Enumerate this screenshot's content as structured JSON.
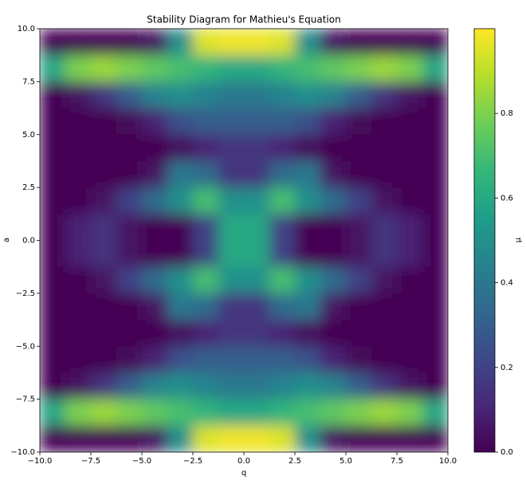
{
  "chart_data": {
    "type": "heatmap",
    "title": "Stability Diagram for Mathieu's Equation",
    "xlabel": "q",
    "ylabel": "a",
    "colorbar_label": "μ",
    "colormap": "viridis",
    "x": [
      -9.375,
      -8.125,
      -6.875,
      -5.625,
      -4.375,
      -3.125,
      -1.875,
      -0.625,
      0.625,
      1.875,
      3.125,
      4.375,
      5.625,
      6.875,
      8.125,
      9.375
    ],
    "y": [
      9.375,
      8.125,
      6.875,
      5.625,
      4.375,
      3.125,
      1.875,
      0.625,
      -0.625,
      -1.875,
      -3.125,
      -4.375,
      -5.625,
      -6.875,
      -8.125,
      -9.375
    ],
    "z": [
      [
        0,
        0,
        0,
        0,
        0.05,
        0.5,
        0.95,
        0.98,
        0.98,
        0.95,
        0.5,
        0.05,
        0,
        0,
        0,
        0
      ],
      [
        0.6,
        0.8,
        0.85,
        0.8,
        0.75,
        0.7,
        0.65,
        0.6,
        0.6,
        0.65,
        0.7,
        0.75,
        0.8,
        0.85,
        0.8,
        0.6
      ],
      [
        0,
        0.05,
        0.15,
        0.3,
        0.45,
        0.5,
        0.45,
        0.4,
        0.4,
        0.45,
        0.5,
        0.45,
        0.3,
        0.15,
        0.05,
        0
      ],
      [
        0,
        0,
        0,
        0.02,
        0.1,
        0.25,
        0.3,
        0.3,
        0.3,
        0.3,
        0.25,
        0.1,
        0.02,
        0,
        0,
        0
      ],
      [
        0,
        0,
        0,
        0,
        0,
        0.03,
        0.1,
        0.15,
        0.15,
        0.1,
        0.03,
        0,
        0,
        0,
        0,
        0
      ],
      [
        0,
        0,
        0,
        0,
        0.05,
        0.4,
        0.35,
        0.15,
        0.15,
        0.35,
        0.4,
        0.05,
        0,
        0,
        0,
        0
      ],
      [
        0,
        0,
        0.05,
        0.2,
        0.35,
        0.5,
        0.7,
        0.5,
        0.5,
        0.7,
        0.5,
        0.35,
        0.2,
        0.05,
        0,
        0
      ],
      [
        0,
        0.1,
        0.15,
        0.05,
        0,
        0,
        0.2,
        0.6,
        0.6,
        0.2,
        0,
        0,
        0.05,
        0.15,
        0.1,
        0
      ],
      [
        0,
        0.1,
        0.15,
        0.05,
        0,
        0,
        0.2,
        0.6,
        0.6,
        0.2,
        0,
        0,
        0.05,
        0.15,
        0.1,
        0
      ],
      [
        0,
        0,
        0.05,
        0.2,
        0.35,
        0.5,
        0.7,
        0.5,
        0.5,
        0.7,
        0.5,
        0.35,
        0.2,
        0.05,
        0,
        0
      ],
      [
        0,
        0,
        0,
        0,
        0.05,
        0.4,
        0.35,
        0.15,
        0.15,
        0.35,
        0.4,
        0.05,
        0,
        0,
        0,
        0
      ],
      [
        0,
        0,
        0,
        0,
        0,
        0.03,
        0.1,
        0.15,
        0.15,
        0.1,
        0.03,
        0,
        0,
        0,
        0,
        0
      ],
      [
        0,
        0,
        0,
        0.02,
        0.1,
        0.25,
        0.3,
        0.3,
        0.3,
        0.3,
        0.25,
        0.1,
        0.02,
        0,
        0,
        0
      ],
      [
        0,
        0.05,
        0.15,
        0.3,
        0.45,
        0.5,
        0.45,
        0.4,
        0.4,
        0.45,
        0.5,
        0.45,
        0.3,
        0.15,
        0.05,
        0
      ],
      [
        0.6,
        0.8,
        0.85,
        0.8,
        0.75,
        0.7,
        0.65,
        0.6,
        0.6,
        0.65,
        0.7,
        0.75,
        0.8,
        0.85,
        0.8,
        0.6
      ],
      [
        0,
        0,
        0,
        0,
        0.05,
        0.5,
        0.95,
        0.98,
        0.98,
        0.95,
        0.5,
        0.05,
        0,
        0,
        0,
        0
      ]
    ],
    "xlim": [
      -10,
      10
    ],
    "ylim": [
      -10,
      10
    ],
    "clim": [
      0,
      1
    ],
    "xticks": [
      {
        "value": -10,
        "label": "−10.0"
      },
      {
        "value": -7.5,
        "label": "−7.5"
      },
      {
        "value": -5,
        "label": "−5.0"
      },
      {
        "value": -2.5,
        "label": "−2.5"
      },
      {
        "value": 0,
        "label": "0.0"
      },
      {
        "value": 2.5,
        "label": "2.5"
      },
      {
        "value": 5,
        "label": "5.0"
      },
      {
        "value": 7.5,
        "label": "7.5"
      },
      {
        "value": 10,
        "label": "10.0"
      }
    ],
    "yticks": [
      {
        "value": -10,
        "label": "−10.0"
      },
      {
        "value": -7.5,
        "label": "−7.5"
      },
      {
        "value": -5,
        "label": "−5.0"
      },
      {
        "value": -2.5,
        "label": "−2.5"
      },
      {
        "value": 0,
        "label": "0.0"
      },
      {
        "value": 2.5,
        "label": "2.5"
      },
      {
        "value": 5,
        "label": "5.0"
      },
      {
        "value": 7.5,
        "label": "7.5"
      },
      {
        "value": 10,
        "label": "10.0"
      }
    ],
    "cticks": [
      {
        "value": 0,
        "label": "0.0"
      },
      {
        "value": 0.2,
        "label": "0.2"
      },
      {
        "value": 0.4,
        "label": "0.4"
      },
      {
        "value": 0.6,
        "label": "0.6"
      },
      {
        "value": 0.8,
        "label": "0.8"
      }
    ]
  }
}
